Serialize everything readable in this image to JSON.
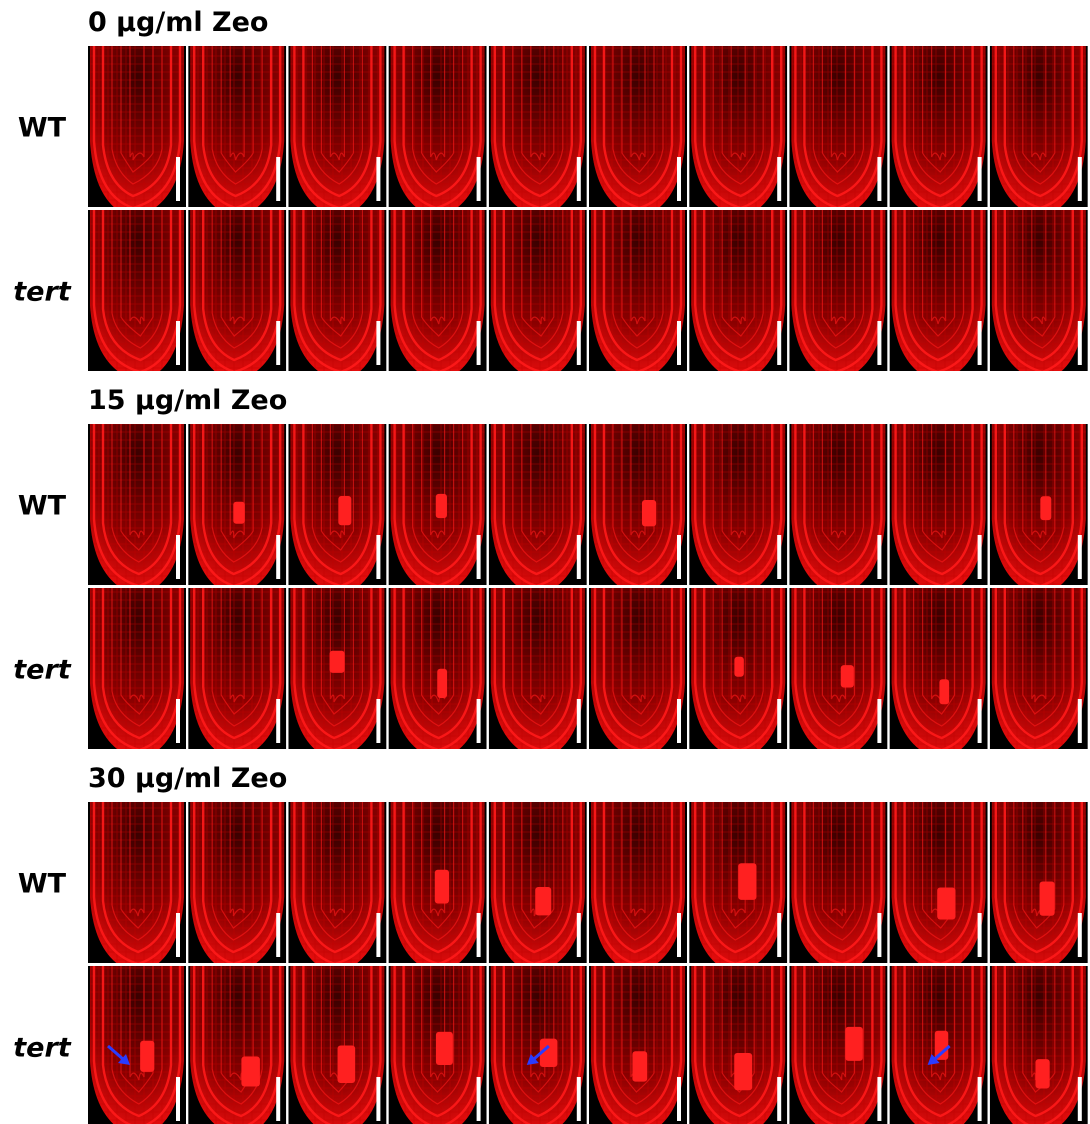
{
  "sections": [
    {
      "title": "0 μg/ml Zeo",
      "rows": [
        {
          "label": "WT"
        },
        {
          "label": "tert"
        }
      ]
    },
    {
      "title": "15 μg/ml Zeo",
      "rows": [
        {
          "label": "WT"
        },
        {
          "label": "tert"
        }
      ]
    },
    {
      "title": "30 μg/ml Zeo",
      "rows": [
        {
          "label": "WT"
        },
        {
          "label": "tert"
        }
      ]
    }
  ]
}
